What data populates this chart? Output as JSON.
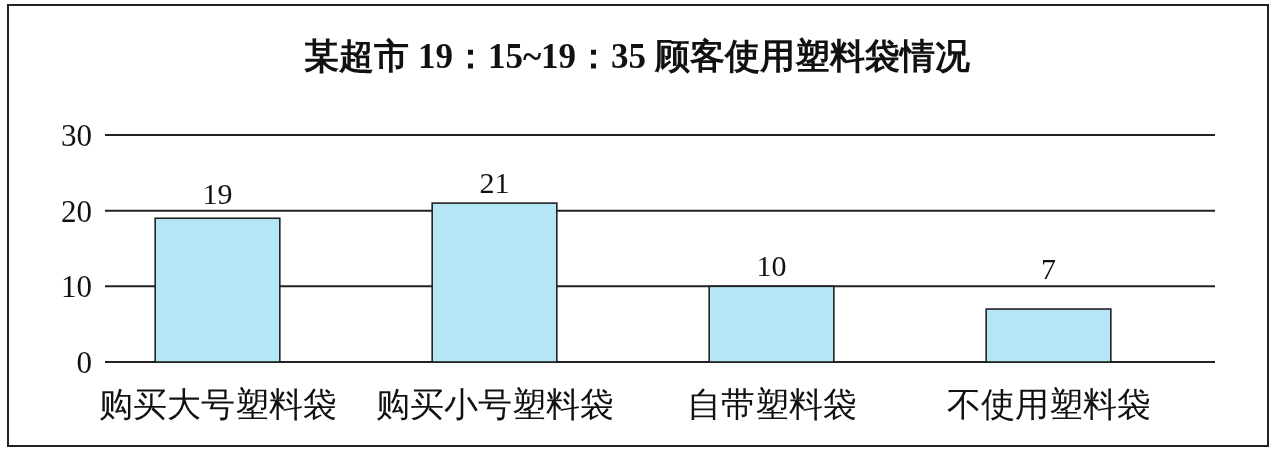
{
  "chart_data": {
    "type": "bar",
    "title": "某超市 19：15~19：35 顾客使用塑料袋情况",
    "categories": [
      "购买大号塑料袋",
      "购买小号塑料袋",
      "自带塑料袋",
      "不使用塑料袋"
    ],
    "values": [
      19,
      21,
      10,
      7
    ],
    "color": "#b5e6f6",
    "ylim": [
      0,
      30
    ],
    "yticks": [
      0,
      10,
      20,
      30
    ],
    "grid": "y",
    "data_labels": true
  }
}
